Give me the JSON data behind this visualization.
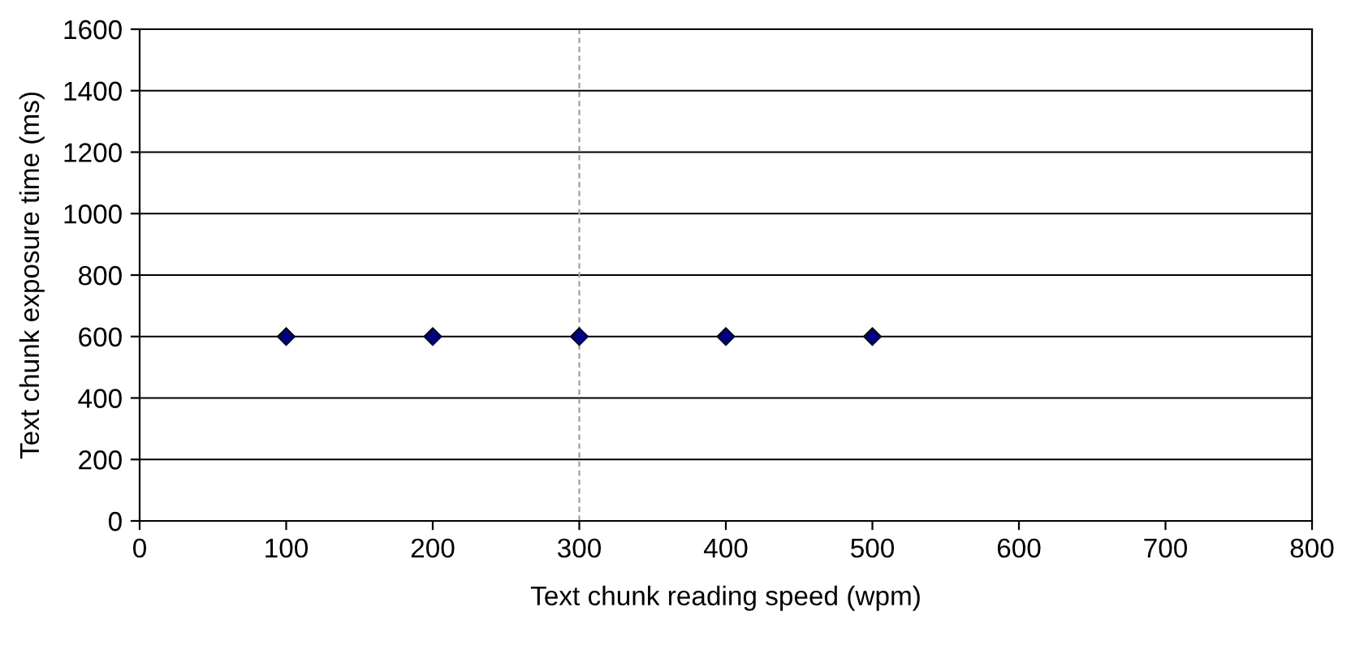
{
  "chart_data": {
    "type": "scatter",
    "xlabel": "Text chunk reading speed (wpm)",
    "ylabel": "Text chunk exposure time (ms)",
    "x": [
      100,
      200,
      300,
      400,
      500
    ],
    "series": [
      {
        "color": "#000080",
        "values": [
          600,
          600,
          600,
          600,
          600
        ]
      }
    ],
    "xlim": [
      0,
      800
    ],
    "xticks": [
      0,
      100,
      200,
      300,
      400,
      500,
      600,
      700,
      800
    ],
    "ylim": [
      0,
      1600
    ],
    "yticks": [
      0,
      200,
      400,
      600,
      800,
      1000,
      1200,
      1400,
      1600
    ],
    "grid": "y",
    "marker": "diamond",
    "ref_lines": [
      {
        "axis": "x",
        "value": 300,
        "label": null,
        "color": "#a0a0a0",
        "line_style": "dashed"
      }
    ]
  }
}
